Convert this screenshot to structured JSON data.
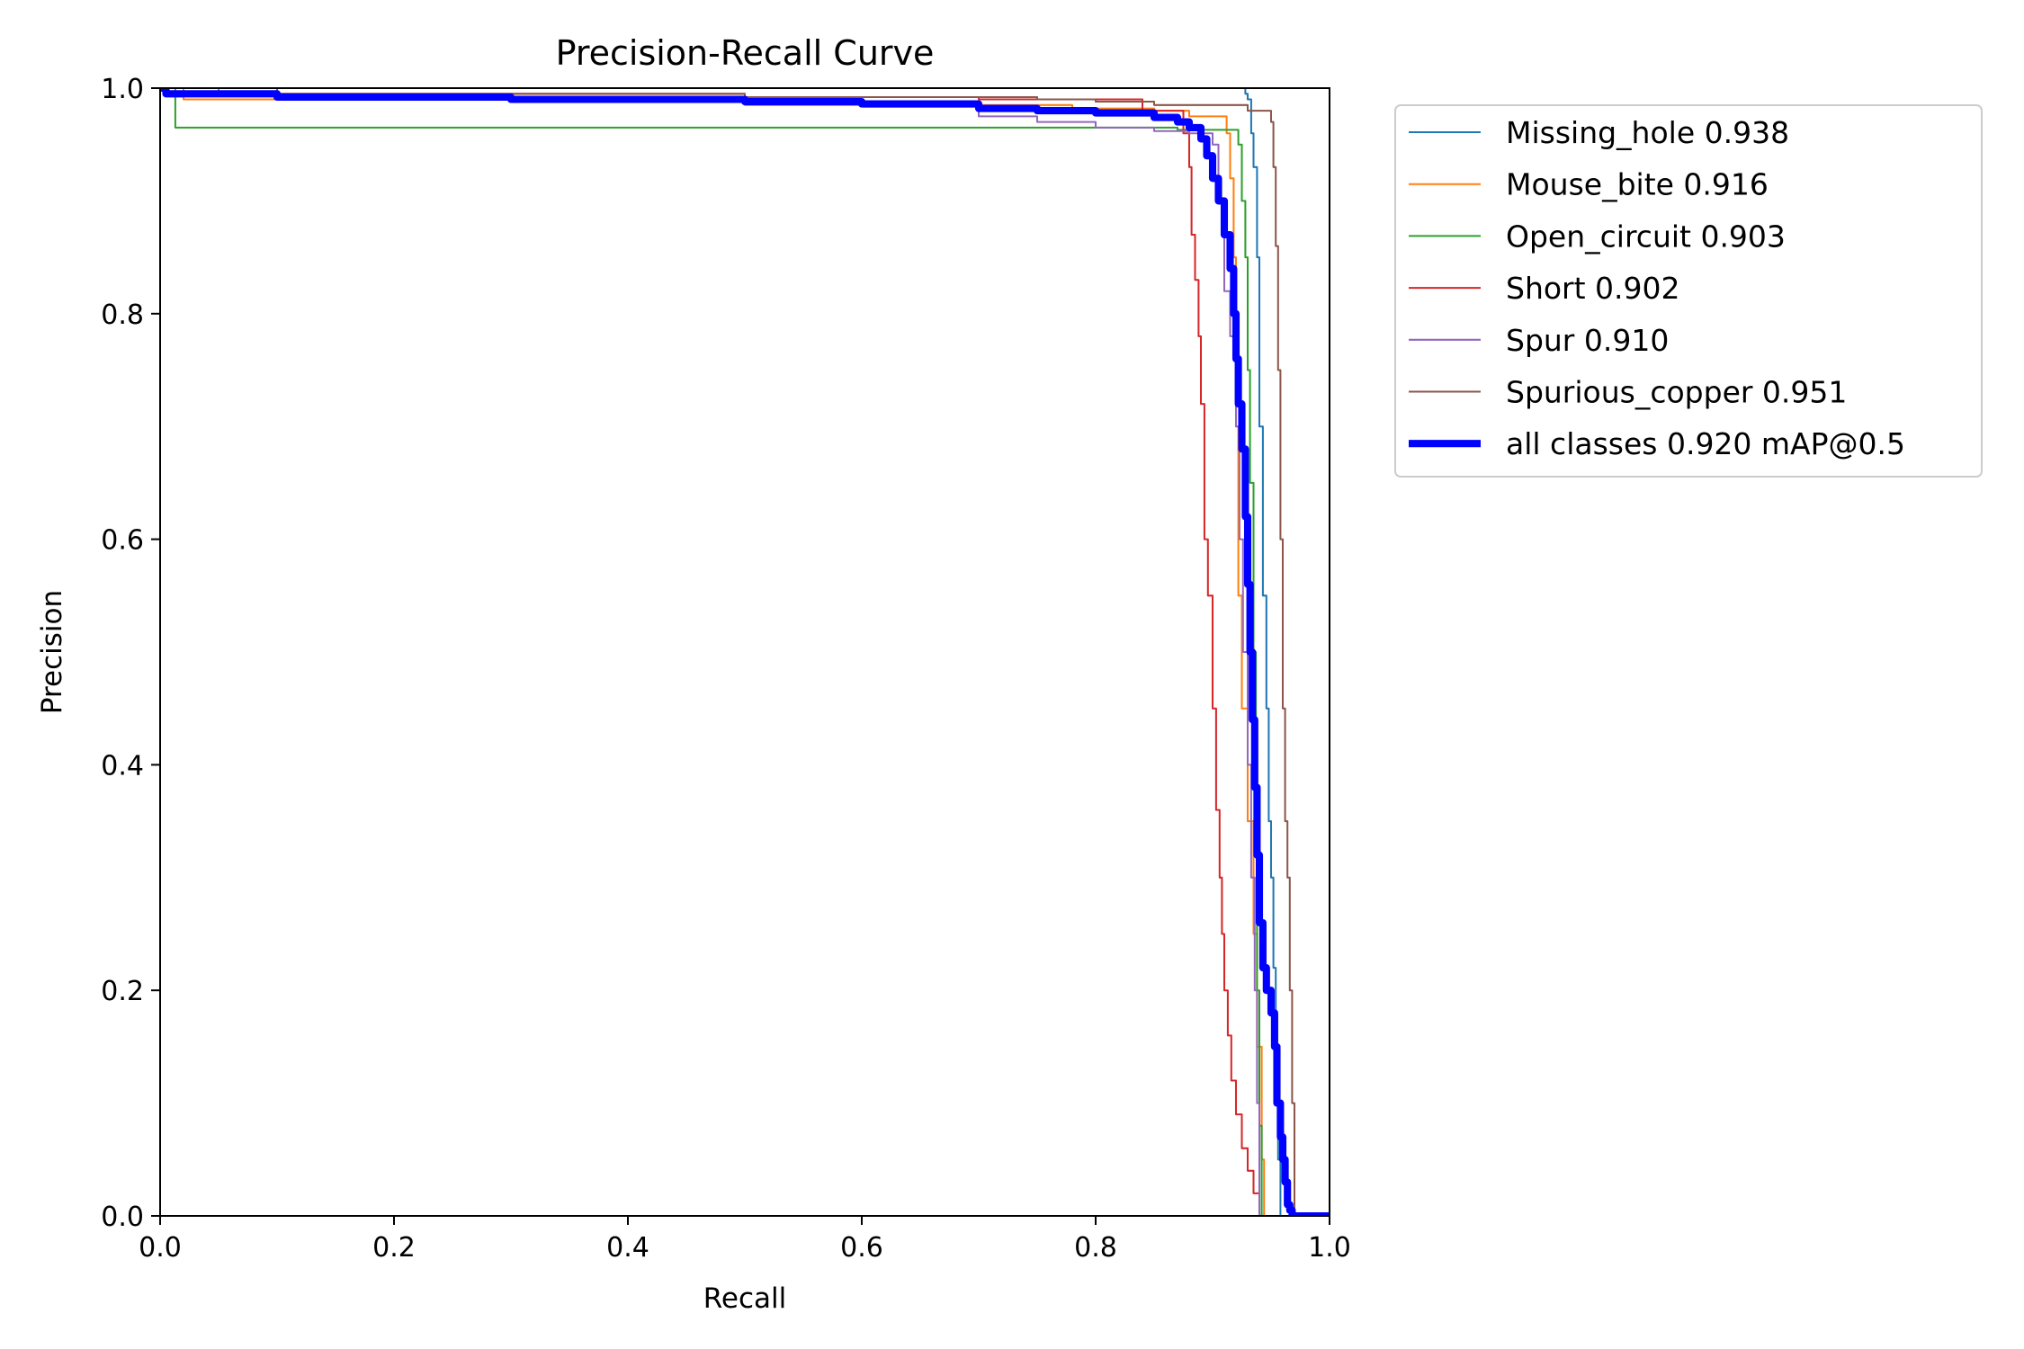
{
  "chart_data": {
    "type": "line",
    "title": "Precision-Recall Curve",
    "xlabel": "Recall",
    "ylabel": "Precision",
    "xlim": [
      0,
      1
    ],
    "ylim": [
      0,
      1
    ],
    "xticks": [
      "0.0",
      "0.2",
      "0.4",
      "0.6",
      "0.8",
      "1.0"
    ],
    "yticks": [
      "0.0",
      "0.2",
      "0.4",
      "0.6",
      "0.8",
      "1.0"
    ],
    "grid": false,
    "legend_position": "outside-upper-right",
    "series": [
      {
        "name": "Missing_hole 0.938",
        "color": "#1f77b4",
        "width": 1.5,
        "x": [
          0,
          0.005,
          0.01,
          0.5,
          0.9,
          0.925,
          0.928,
          0.93,
          0.933,
          0.935,
          0.938,
          0.94,
          0.943,
          0.946,
          0.948,
          0.95,
          0.952,
          0.954,
          0.956,
          0.958,
          0.958,
          1.0
        ],
        "y": [
          1.0,
          1.0,
          1.0,
          1.0,
          1.0,
          1.0,
          0.995,
          0.99,
          0.96,
          0.93,
          0.85,
          0.7,
          0.55,
          0.45,
          0.35,
          0.3,
          0.22,
          0.1,
          0.05,
          0.0,
          0.0,
          0.0
        ]
      },
      {
        "name": "Mouse_bite 0.916",
        "color": "#ff7f0e",
        "width": 1.5,
        "x": [
          0,
          0.02,
          0.5,
          0.78,
          0.85,
          0.88,
          0.91,
          0.912,
          0.915,
          0.918,
          0.92,
          0.922,
          0.925,
          0.93,
          0.935,
          0.938,
          0.942,
          0.944
        ],
        "y": [
          1.0,
          0.99,
          0.985,
          0.982,
          0.98,
          0.975,
          0.975,
          0.96,
          0.92,
          0.85,
          0.7,
          0.55,
          0.45,
          0.35,
          0.25,
          0.15,
          0.05,
          0.0
        ]
      },
      {
        "name": "Open_circuit 0.903",
        "color": "#2ca02c",
        "width": 1.5,
        "x": [
          0,
          0.012,
          0.013,
          0.5,
          0.87,
          0.9,
          0.92,
          0.922,
          0.925,
          0.928,
          0.93,
          0.932,
          0.935,
          0.937,
          0.938,
          0.94,
          0.942
        ],
        "y": [
          1.0,
          1.0,
          0.965,
          0.965,
          0.963,
          0.963,
          0.963,
          0.95,
          0.9,
          0.85,
          0.75,
          0.65,
          0.5,
          0.35,
          0.2,
          0.08,
          0.0
        ]
      },
      {
        "name": "Short 0.902",
        "color": "#d62728",
        "width": 1.5,
        "x": [
          0,
          0.1,
          0.5,
          0.7,
          0.84,
          0.875,
          0.88,
          0.882,
          0.885,
          0.888,
          0.89,
          0.893,
          0.896,
          0.9,
          0.903,
          0.906,
          0.908,
          0.91,
          0.913,
          0.916,
          0.92,
          0.925,
          0.93,
          0.935,
          0.94
        ],
        "y": [
          1.0,
          0.995,
          0.992,
          0.99,
          0.98,
          0.96,
          0.93,
          0.87,
          0.83,
          0.78,
          0.72,
          0.6,
          0.55,
          0.45,
          0.36,
          0.3,
          0.25,
          0.2,
          0.16,
          0.12,
          0.09,
          0.06,
          0.04,
          0.02,
          0.0
        ]
      },
      {
        "name": "Spur 0.910",
        "color": "#9467bd",
        "width": 1.5,
        "x": [
          0,
          0.05,
          0.3,
          0.6,
          0.7,
          0.75,
          0.8,
          0.85,
          0.88,
          0.9,
          0.905,
          0.91,
          0.915,
          0.92,
          0.923,
          0.926,
          0.93,
          0.933,
          0.936,
          0.938,
          0.94
        ],
        "y": [
          1.0,
          0.995,
          0.99,
          0.985,
          0.975,
          0.97,
          0.965,
          0.962,
          0.96,
          0.95,
          0.9,
          0.82,
          0.78,
          0.7,
          0.6,
          0.5,
          0.4,
          0.3,
          0.2,
          0.1,
          0.0
        ]
      },
      {
        "name": "Spurious_copper 0.951",
        "color": "#8c564b",
        "width": 1.5,
        "x": [
          0,
          0.1,
          0.5,
          0.75,
          0.8,
          0.85,
          0.9,
          0.93,
          0.95,
          0.952,
          0.954,
          0.956,
          0.958,
          0.96,
          0.962,
          0.964,
          0.966,
          0.968,
          0.97
        ],
        "y": [
          1.0,
          0.995,
          0.992,
          0.99,
          0.988,
          0.985,
          0.985,
          0.98,
          0.97,
          0.93,
          0.86,
          0.75,
          0.6,
          0.45,
          0.35,
          0.3,
          0.2,
          0.1,
          0.0
        ]
      },
      {
        "name": "all classes 0.920 mAP@0.5",
        "color": "#0000ff",
        "width": 6,
        "x": [
          0,
          0.005,
          0.1,
          0.3,
          0.5,
          0.6,
          0.7,
          0.75,
          0.8,
          0.85,
          0.87,
          0.88,
          0.89,
          0.895,
          0.9,
          0.905,
          0.91,
          0.915,
          0.918,
          0.92,
          0.922,
          0.925,
          0.928,
          0.93,
          0.932,
          0.934,
          0.936,
          0.938,
          0.94,
          0.943,
          0.946,
          0.95,
          0.953,
          0.955,
          0.958,
          0.96,
          0.962,
          0.964,
          0.966,
          0.968,
          1.0
        ],
        "y": [
          1.0,
          0.995,
          0.992,
          0.99,
          0.988,
          0.986,
          0.982,
          0.98,
          0.978,
          0.974,
          0.97,
          0.965,
          0.955,
          0.94,
          0.92,
          0.9,
          0.87,
          0.84,
          0.8,
          0.76,
          0.72,
          0.68,
          0.62,
          0.56,
          0.5,
          0.44,
          0.38,
          0.32,
          0.26,
          0.22,
          0.2,
          0.18,
          0.15,
          0.1,
          0.07,
          0.05,
          0.03,
          0.01,
          0.005,
          0.0,
          0.0
        ]
      }
    ]
  }
}
